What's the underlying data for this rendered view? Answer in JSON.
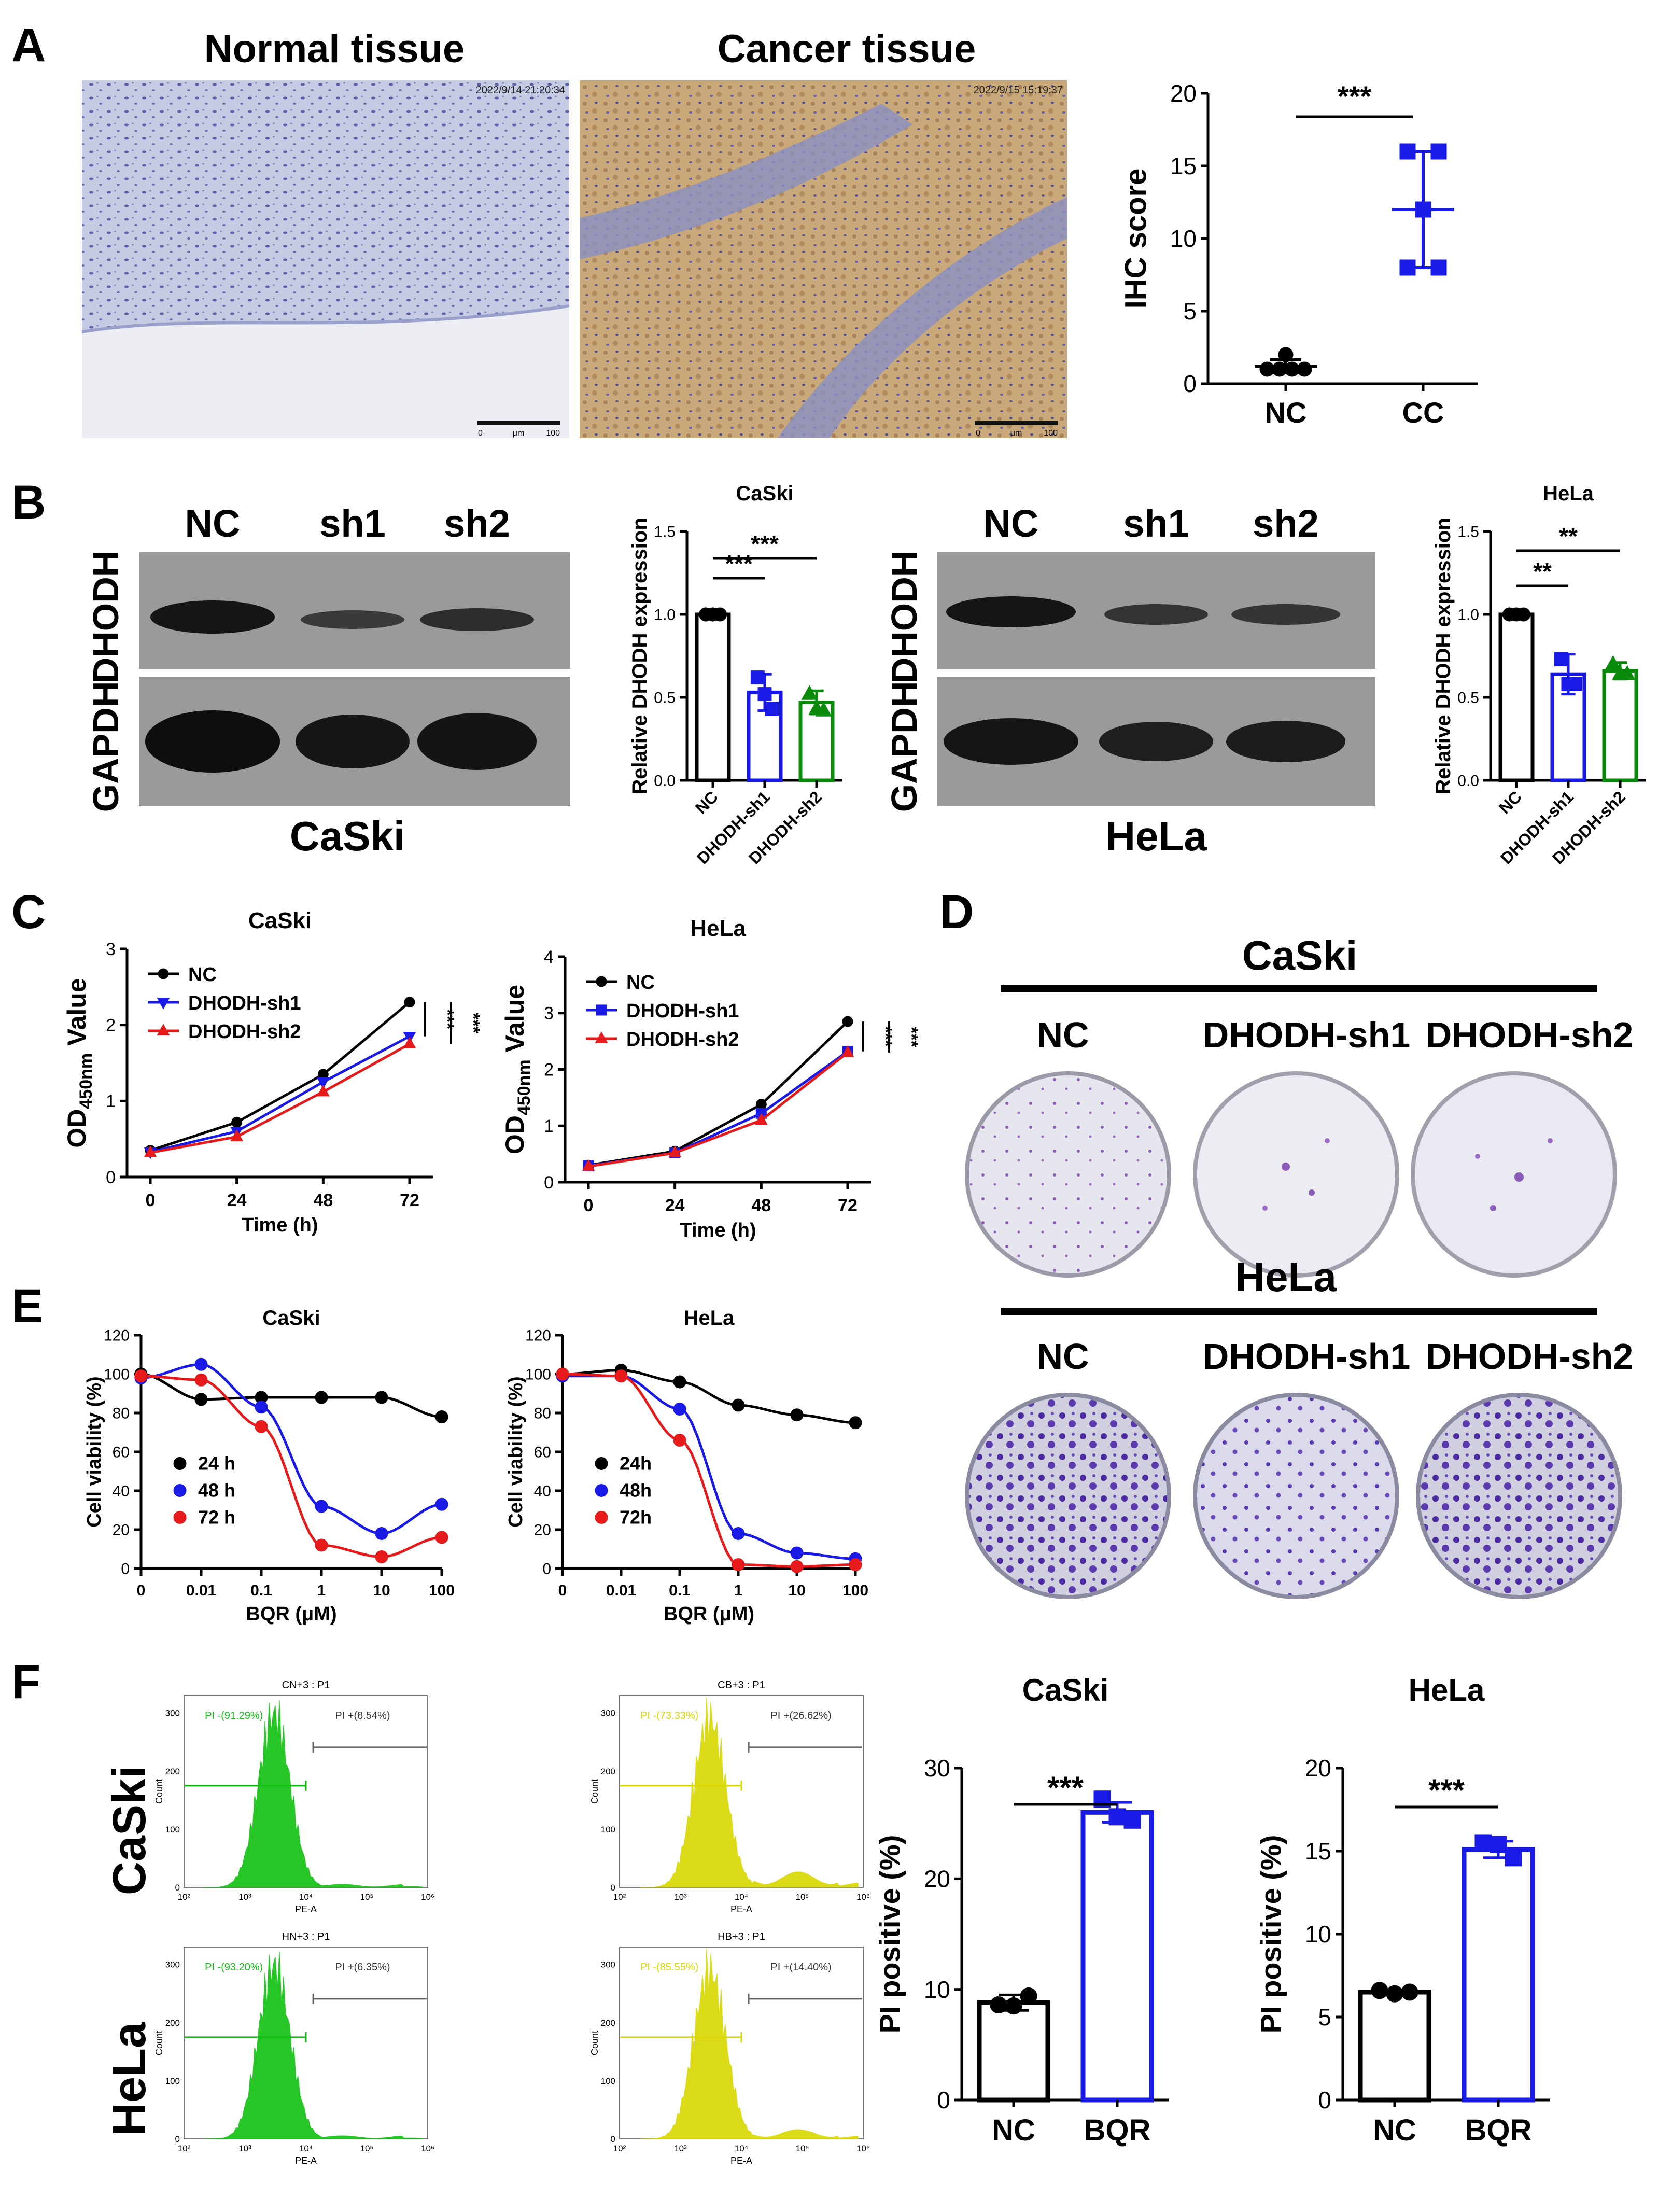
{
  "panel_letters": [
    "A",
    "B",
    "C",
    "D",
    "E",
    "F"
  ],
  "panelA": {
    "normal_title": "Normal tissue",
    "cancer_title": "Cancer tissue",
    "normal_stamp": "2022/9/14 21:20:34",
    "cancer_stamp": "2022/9/15 15:19:37",
    "scale_left": "0",
    "scale_mid": "μm",
    "scale_right": "100"
  },
  "panelB": {
    "lanes": [
      "NC",
      "sh1",
      "sh2"
    ],
    "band_labels": [
      "DHODH",
      "GAPDH"
    ],
    "blot_titles": [
      "CaSki",
      "HeLa"
    ]
  },
  "panelD": {
    "groups": [
      {
        "title": "CaSki",
        "labels": [
          "NC",
          "DHODH-sh1",
          "DHODH-sh2"
        ]
      },
      {
        "title": "HeLa",
        "labels": [
          "NC",
          "DHODH-sh1",
          "DHODH-sh2"
        ]
      }
    ]
  },
  "panelF": {
    "row_labels": [
      "CaSki",
      "HeLa"
    ],
    "flow": [
      {
        "title": "CN+3 : P1",
        "neg": "PI -(91.29%)",
        "pos": "PI +(8.54%)",
        "color": "#10c010"
      },
      {
        "title": "CB+3 : P1",
        "neg": "PI -(73.33%)",
        "pos": "PI +(26.62%)",
        "color": "#d8d800"
      },
      {
        "title": "HN+3 : P1",
        "neg": "PI -(93.20%)",
        "pos": "PI +(6.35%)",
        "color": "#10c010"
      },
      {
        "title": "HB+3 : P1",
        "neg": "PI -(85.55%)",
        "pos": "PI +(14.40%)",
        "color": "#d8d800"
      }
    ],
    "flow_axis": {
      "ylabel": "Count",
      "xlabel": "PE-A",
      "yticks": [
        "0",
        "100",
        "200",
        "300"
      ],
      "xticks": [
        "10²",
        "10³",
        "10⁴",
        "10⁵",
        "10⁶"
      ]
    }
  },
  "chart_data": [
    {
      "id": "A-ihc",
      "type": "scatter",
      "title": "",
      "xlabel": "",
      "ylabel": "IHC score",
      "categories": [
        "NC",
        "CC"
      ],
      "ylim": [
        0,
        20
      ],
      "yticks": [
        0,
        5,
        10,
        15,
        20
      ],
      "series": [
        {
          "values": [
            [
              1,
              1,
              1,
              1,
              2
            ],
            [
              8,
              8,
              12,
              16,
              16
            ]
          ]
        }
      ],
      "mean": [
        1.2,
        12
      ],
      "sd": [
        0.45,
        4
      ],
      "significance": [
        {
          "pair": [
            "NC",
            "CC"
          ],
          "label": "***"
        }
      ],
      "colors": [
        "#000000",
        "#1a1ae6"
      ]
    },
    {
      "id": "B-caski",
      "type": "bar",
      "title": "CaSki",
      "ylabel": "Relative DHODH expression",
      "categories": [
        "NC",
        "DHODH-sh1",
        "DHODH-sh2"
      ],
      "values": [
        1.0,
        0.53,
        0.47
      ],
      "sd": [
        0,
        0.11,
        0.07
      ],
      "points": [
        [
          1,
          1,
          1
        ],
        [
          0.62,
          0.52,
          0.43
        ],
        [
          0.52,
          0.43,
          0.42
        ]
      ],
      "ylim": [
        0,
        1.5
      ],
      "yticks": [
        "0.0",
        "0.5",
        "1.0",
        "1.5"
      ],
      "significance": [
        {
          "pair": [
            "NC",
            "DHODH-sh1"
          ],
          "label": "***"
        },
        {
          "pair": [
            "NC",
            "DHODH-sh2"
          ],
          "label": "***"
        }
      ],
      "colors": [
        "#000000",
        "#1a1ae6",
        "#0a8a0a"
      ]
    },
    {
      "id": "B-hela",
      "type": "bar",
      "title": "HeLa",
      "ylabel": "Relative DHODH expression",
      "categories": [
        "NC",
        "DHODH-sh1",
        "DHODH-sh2"
      ],
      "values": [
        1.0,
        0.64,
        0.66
      ],
      "sd": [
        0,
        0.12,
        0.05
      ],
      "points": [
        [
          1,
          1,
          1
        ],
        [
          0.73,
          0.58,
          0.58
        ],
        [
          0.7,
          0.64,
          0.64
        ]
      ],
      "ylim": [
        0,
        1.5
      ],
      "yticks": [
        "0.0",
        "0.5",
        "1.0",
        "1.5"
      ],
      "significance": [
        {
          "pair": [
            "NC",
            "DHODH-sh1"
          ],
          "label": "**"
        },
        {
          "pair": [
            "NC",
            "DHODH-sh2"
          ],
          "label": "**"
        }
      ],
      "colors": [
        "#000000",
        "#1a1ae6",
        "#0a8a0a"
      ]
    },
    {
      "id": "C-caski",
      "type": "line",
      "title": "CaSki",
      "xlabel": "Time (h)",
      "ylabel": "OD450nm Value",
      "ylabel_parts": [
        "OD",
        "450nm",
        " Value"
      ],
      "x": [
        0,
        24,
        48,
        72
      ],
      "xlim": [
        0,
        72
      ],
      "ylim": [
        0,
        3
      ],
      "yticks": [
        0,
        1,
        2,
        3
      ],
      "series": [
        {
          "name": "NC",
          "values": [
            0.35,
            0.72,
            1.35,
            2.3
          ],
          "color": "#000000",
          "marker": "circle"
        },
        {
          "name": "DHODH-sh1",
          "values": [
            0.33,
            0.6,
            1.25,
            1.85
          ],
          "color": "#1a1ae6",
          "marker": "triangle-down"
        },
        {
          "name": "DHODH-sh2",
          "values": [
            0.32,
            0.53,
            1.12,
            1.75
          ],
          "color": "#e61a1a",
          "marker": "triangle-up"
        }
      ],
      "significance": [
        "***",
        "***"
      ]
    },
    {
      "id": "C-hela",
      "type": "line",
      "title": "HeLa",
      "xlabel": "Time (h)",
      "ylabel": "OD450nm Value",
      "ylabel_parts": [
        "OD",
        "450nm",
        " Value"
      ],
      "x": [
        0,
        24,
        48,
        72
      ],
      "xlim": [
        0,
        72
      ],
      "ylim": [
        0,
        4
      ],
      "yticks": [
        0,
        1,
        2,
        3,
        4
      ],
      "series": [
        {
          "name": "NC",
          "values": [
            0.3,
            0.55,
            1.38,
            2.85
          ],
          "color": "#000000",
          "marker": "circle"
        },
        {
          "name": "DHODH-sh1",
          "values": [
            0.29,
            0.52,
            1.22,
            2.32
          ],
          "color": "#1a1ae6",
          "marker": "square"
        },
        {
          "name": "DHODH-sh2",
          "values": [
            0.28,
            0.52,
            1.1,
            2.3
          ],
          "color": "#e61a1a",
          "marker": "triangle-up"
        }
      ],
      "significance": [
        "***",
        "***"
      ]
    },
    {
      "id": "E-caski",
      "type": "line",
      "title": "CaSki",
      "xlabel": "BQR (μM)",
      "ylabel": "Cell viability (%)",
      "x": [
        "0",
        "0.01",
        "0.1",
        "1",
        "10",
        "100"
      ],
      "ylim": [
        0,
        120
      ],
      "yticks": [
        0,
        20,
        40,
        60,
        80,
        100,
        120
      ],
      "series": [
        {
          "name": "24 h",
          "values": [
            100,
            87,
            88,
            88,
            88,
            78
          ],
          "color": "#000000"
        },
        {
          "name": "48 h",
          "values": [
            98,
            105,
            83,
            32,
            18,
            33
          ],
          "color": "#1a1ae6"
        },
        {
          "name": "72 h",
          "values": [
            99,
            97,
            73,
            12,
            6,
            16
          ],
          "color": "#e61a1a"
        }
      ]
    },
    {
      "id": "E-hela",
      "type": "line",
      "title": "HeLa",
      "xlabel": "BQR (μM)",
      "ylabel": "Cell viability (%)",
      "x": [
        "0",
        "0.01",
        "0.1",
        "1",
        "10",
        "100"
      ],
      "ylim": [
        0,
        120
      ],
      "yticks": [
        0,
        20,
        40,
        60,
        80,
        100,
        120
      ],
      "series": [
        {
          "name": "24h",
          "values": [
            100,
            102,
            96,
            84,
            79,
            75
          ],
          "color": "#000000"
        },
        {
          "name": "48h",
          "values": [
            99,
            99,
            82,
            18,
            8,
            5
          ],
          "color": "#1a1ae6"
        },
        {
          "name": "72h",
          "values": [
            100,
            99,
            66,
            2,
            1,
            2
          ],
          "color": "#e61a1a"
        }
      ]
    },
    {
      "id": "F-caski",
      "type": "bar",
      "title": "CaSki",
      "ylabel": "PI positive (%)",
      "categories": [
        "NC",
        "BQR"
      ],
      "values": [
        8.8,
        26.0
      ],
      "sd": [
        0.7,
        0.9
      ],
      "points": [
        [
          8.6,
          8.5,
          9.4
        ],
        [
          27.2,
          25.6,
          25.3
        ]
      ],
      "ylim": [
        0,
        30
      ],
      "yticks": [
        0,
        10,
        20,
        30
      ],
      "significance": [
        {
          "pair": [
            "NC",
            "BQR"
          ],
          "label": "***"
        }
      ],
      "colors": [
        "#000000",
        "#1a1ae6"
      ]
    },
    {
      "id": "F-hela",
      "type": "bar",
      "title": "HeLa",
      "ylabel": "PI positive (%)",
      "categories": [
        "NC",
        "BQR"
      ],
      "values": [
        6.5,
        15.1
      ],
      "sd": [
        0.15,
        0.5
      ],
      "points": [
        [
          6.6,
          6.4,
          6.5
        ],
        [
          15.5,
          15.4,
          14.6
        ]
      ],
      "ylim": [
        0,
        20
      ],
      "yticks": [
        0,
        5,
        10,
        15,
        20
      ],
      "significance": [
        {
          "pair": [
            "NC",
            "BQR"
          ],
          "label": "***"
        }
      ],
      "colors": [
        "#000000",
        "#1a1ae6"
      ]
    }
  ]
}
